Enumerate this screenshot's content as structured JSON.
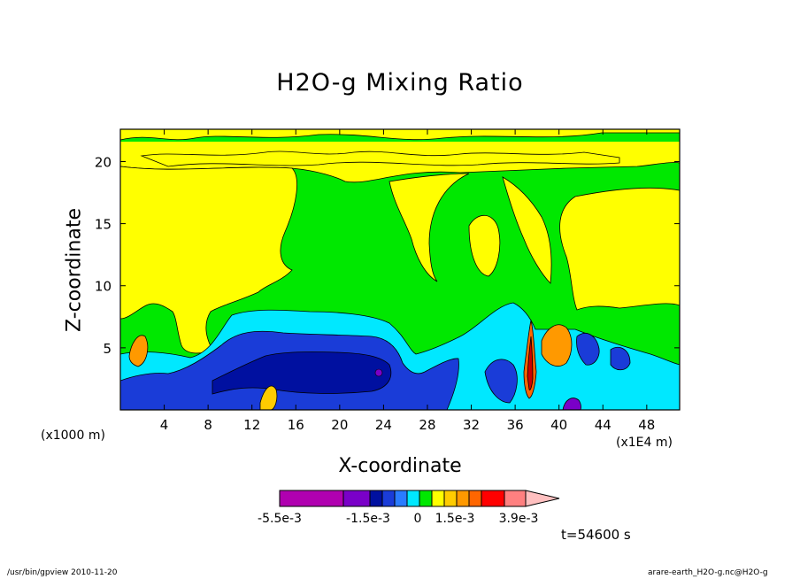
{
  "chart_data": {
    "type": "heatmap",
    "title": "H2O-g Mixing Ratio",
    "xlabel": "X-coordinate",
    "ylabel": "Z-coordinate",
    "x_unit_left": "(x1000 m)",
    "x_unit_right": "(x1E4 m)",
    "x_ticks": [
      "4",
      "8",
      "12",
      "16",
      "20",
      "24",
      "28",
      "32",
      "36",
      "40",
      "44",
      "48"
    ],
    "y_ticks": [
      "5",
      "10",
      "15",
      "20"
    ],
    "xlim": [
      0,
      51
    ],
    "ylim": [
      0,
      22.6
    ],
    "colorbar": {
      "colors": [
        "#b000b0",
        "#7a00c8",
        "#0010a0",
        "#1a3cd8",
        "#2a7cff",
        "#00e8ff",
        "#00e800",
        "#ffff00",
        "#ffcc00",
        "#ff9900",
        "#ff6600",
        "#ff0000",
        "#ff8080",
        "#ffc0c0"
      ],
      "labels": [
        "-5.5e-3",
        "-1.5e-3",
        "0",
        "1.5e-3",
        "3.9e-3"
      ]
    },
    "time_label": "t=54600 s"
  },
  "footer": {
    "left": "/usr/bin/gpview   2010-11-20",
    "right": "arare-earth_H2O-g.nc@H2O-g"
  }
}
